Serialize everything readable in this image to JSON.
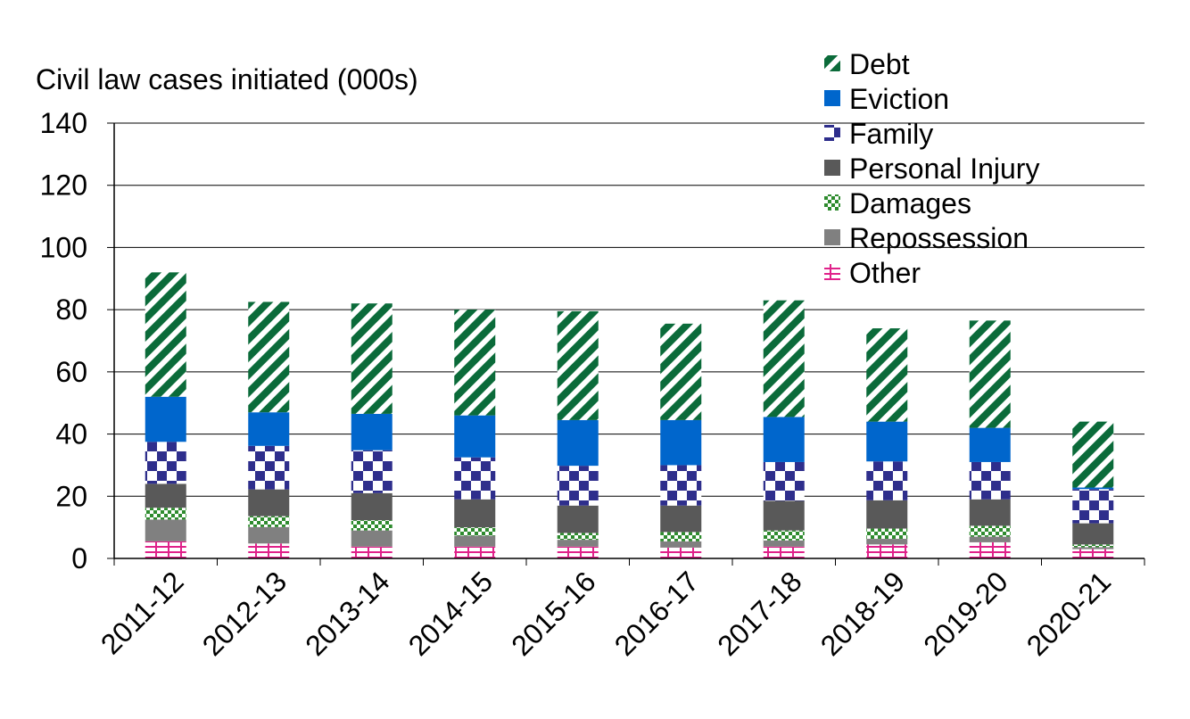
{
  "chart_data": {
    "type": "bar",
    "stacked": true,
    "ylabel": "Civil law cases initiated (000s)",
    "ylim": [
      0,
      140
    ],
    "yticks": [
      0,
      20,
      40,
      60,
      80,
      100,
      120,
      140
    ],
    "grid": true,
    "legend_position": "top-right",
    "categories": [
      "2011-12",
      "2012-13",
      "2013-14",
      "2014-15",
      "2015-16",
      "2016-17",
      "2017-18",
      "2018-19",
      "2019-20",
      "2020-21"
    ],
    "series": [
      {
        "name": "Other",
        "color": "#e0218a",
        "values": [
          5.5,
          4.8,
          3.8,
          3.8,
          3.8,
          3.5,
          3.8,
          4.5,
          5.2,
          3.0
        ]
      },
      {
        "name": "Repossession",
        "color": "#808080",
        "values": [
          7.0,
          5.3,
          5.2,
          3.5,
          2.2,
          2.0,
          2.0,
          1.8,
          1.8,
          0.6
        ]
      },
      {
        "name": "Damages",
        "color": "#2e8b2e",
        "values": [
          3.8,
          3.5,
          3.3,
          2.7,
          2.2,
          3.0,
          3.2,
          3.3,
          3.5,
          0.9
        ]
      },
      {
        "name": "Personal Injury",
        "color": "#595959",
        "values": [
          7.7,
          8.6,
          8.7,
          9.0,
          8.8,
          8.5,
          9.5,
          9.1,
          8.5,
          6.8
        ]
      },
      {
        "name": "Family",
        "color": "#2e2e8c",
        "values": [
          13.5,
          14.0,
          13.8,
          13.5,
          12.8,
          13.0,
          12.5,
          12.5,
          12.0,
          11.0
        ]
      },
      {
        "name": "Eviction",
        "color": "#0066cc",
        "values": [
          14.5,
          10.8,
          11.7,
          13.5,
          14.7,
          14.5,
          14.5,
          12.8,
          11.0,
          0.5
        ]
      },
      {
        "name": "Debt",
        "color": "#0b6b3a",
        "values": [
          40.0,
          35.5,
          35.5,
          34.0,
          35.0,
          31.0,
          37.5,
          30.0,
          34.5,
          21.2
        ]
      }
    ]
  }
}
